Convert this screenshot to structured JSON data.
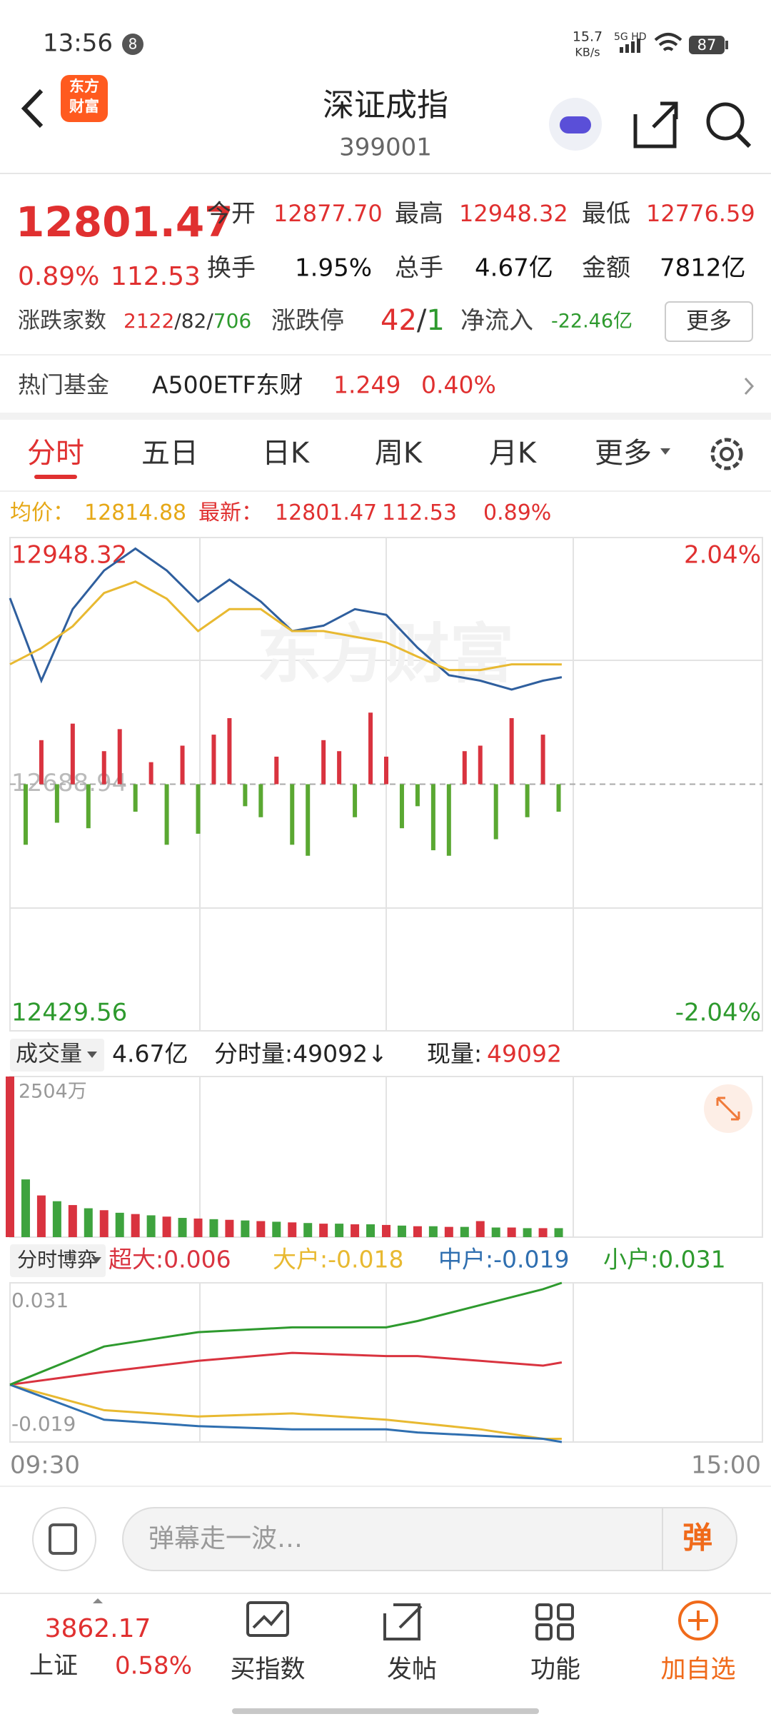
{
  "status": {
    "time": "13:56",
    "badge": "8",
    "speed": "15.7",
    "speed_unit": "KB/s",
    "network": "5G HD",
    "battery": "87"
  },
  "header": {
    "logo_line1": "东方",
    "logo_line2": "财富",
    "title": "深证成指",
    "code": "399001"
  },
  "quote": {
    "price": "12801.47",
    "change_pct": "0.89%",
    "change": "112.53",
    "stats": [
      {
        "label": "今开",
        "value": "12877.70"
      },
      {
        "label": "最高",
        "value": "12948.32"
      },
      {
        "label": "最低",
        "value": "12776.59"
      },
      {
        "label": "换手",
        "value": "1.95%"
      },
      {
        "label": "总手",
        "value": "4.67亿"
      },
      {
        "label": "金额",
        "value": "7812亿"
      }
    ],
    "breadth_label": "涨跌家数",
    "breadth": [
      "2122",
      "/82/",
      "706"
    ],
    "limit_label": "涨跌停",
    "limit": [
      "42",
      "/",
      "1"
    ],
    "inflow_label": "净流入",
    "inflow": "-22.46亿",
    "more": "更多"
  },
  "hot_fund": {
    "label": "热门基金",
    "name": "A500ETF东财",
    "price": "1.249",
    "change": "0.40%"
  },
  "tabs": [
    "分时",
    "五日",
    "日K",
    "周K",
    "月K",
    "更多"
  ],
  "info": {
    "avg_label": "均价：",
    "avg": "12814.88",
    "last_label": "最新：",
    "last": "12801.47",
    "change": "112.53",
    "change_pct": "0.89%"
  },
  "watermark": "东方财富",
  "volume_bar": {
    "selector": "成交量",
    "total": "4.67亿",
    "minute": "分时量:49092↓",
    "current_label": "现量:",
    "current": "49092"
  },
  "flow_bar": {
    "selector": "分时博弈"
  },
  "chart_data": [
    {
      "type": "line",
      "xlim": [
        "09:30",
        "15:00"
      ],
      "ylim": [
        12429.56,
        12948.32
      ],
      "yticks": [
        12948.32,
        12688.94,
        12429.56
      ],
      "y2lim": [
        -2.04,
        2.04
      ],
      "y2ticks": [
        {
          "value": 2.04,
          "label": "2.04%"
        },
        {
          "value": -2.04,
          "label": "-2.04%"
        }
      ],
      "x": [
        "09:30",
        "09:40",
        "09:50",
        "10:00",
        "10:10",
        "10:20",
        "10:30",
        "10:40",
        "10:50",
        "11:00",
        "11:10",
        "11:20",
        "11:30",
        "13:10",
        "13:20",
        "13:30",
        "13:40",
        "13:50",
        "13:56"
      ],
      "series": [
        {
          "name": "price",
          "color": "#2f5f9e",
          "values": [
            12884.6,
            12797.8,
            12873,
            12913.6,
            12936.7,
            12913.6,
            12881,
            12904,
            12881,
            12850,
            12855.7,
            12873,
            12867,
            12832.5,
            12803.6,
            12797.8,
            12788.5,
            12797.8,
            12801.47
          ]
        },
        {
          "name": "avg",
          "color": "#e8b931",
          "values": [
            12815,
            12832,
            12855,
            12890,
            12902,
            12884,
            12850,
            12873,
            12873,
            12850,
            12850,
            12844,
            12838,
            12823,
            12809,
            12809,
            12815,
            12815,
            12814.88
          ]
        }
      ],
      "bars": {
        "ylim": [
          -224,
          224
        ],
        "colors": [
          "#d9333f",
          "#5aa832"
        ],
        "x": [
          "09:35",
          "09:40",
          "09:45",
          "09:50",
          "09:55",
          "10:00",
          "10:05",
          "10:10",
          "10:15",
          "10:20",
          "10:25",
          "10:30",
          "10:35",
          "10:40",
          "10:45",
          "10:50",
          "10:55",
          "11:00",
          "11:05",
          "11:10",
          "11:15",
          "11:20",
          "11:25",
          "11:30",
          "13:05",
          "13:10",
          "13:15",
          "13:20",
          "13:25",
          "13:30",
          "13:35",
          "13:40",
          "13:45",
          "13:50",
          "13:55"
        ],
        "values": [
          -55,
          40,
          -35,
          55,
          -40,
          30,
          50,
          -25,
          20,
          -55,
          35,
          -45,
          45,
          60,
          -20,
          -30,
          25,
          -55,
          -65,
          40,
          30,
          -30,
          65,
          25,
          -40,
          -20,
          -60,
          -65,
          30,
          35,
          -50,
          60,
          -30,
          45,
          -25
        ]
      }
    },
    {
      "type": "bar",
      "ylim": [
        0,
        2504
      ],
      "yticks": [
        {
          "value": 2504,
          "label": "2504万"
        }
      ],
      "colors": [
        "#d9333f",
        "#3ea33e"
      ],
      "x": [
        "09:30",
        "09:35",
        "09:40",
        "09:45",
        "09:50",
        "09:55",
        "10:00",
        "10:05",
        "10:10",
        "10:15",
        "10:20",
        "10:25",
        "10:30",
        "10:35",
        "10:40",
        "10:45",
        "10:50",
        "10:55",
        "11:00",
        "11:05",
        "11:10",
        "11:15",
        "11:20",
        "11:25",
        "11:30",
        "13:05",
        "13:10",
        "13:15",
        "13:20",
        "13:25",
        "13:30",
        "13:35",
        "13:40",
        "13:45",
        "13:50",
        "13:55"
      ],
      "values": [
        2504,
        900,
        650,
        560,
        500,
        450,
        420,
        380,
        360,
        340,
        320,
        300,
        290,
        280,
        270,
        260,
        250,
        240,
        230,
        220,
        210,
        210,
        200,
        200,
        190,
        180,
        170,
        170,
        160,
        160,
        250,
        150,
        150,
        140,
        140,
        140
      ]
    },
    {
      "type": "line",
      "ylim": [
        -0.019,
        0.031
      ],
      "yticks": [
        0.031,
        -0.019
      ],
      "x": [
        "09:30",
        "10:00",
        "10:30",
        "11:00",
        "11:30",
        "13:10",
        "13:30",
        "13:50",
        "13:56"
      ],
      "series": [
        {
          "name": "超大",
          "legend": "超大:0.006",
          "color": "#d9333f",
          "values": [
            -0.001,
            0.003,
            0.0065,
            0.009,
            0.008,
            0.008,
            0.0065,
            0.005,
            0.006
          ]
        },
        {
          "name": "大户",
          "legend": "大户:-0.018",
          "color": "#e8b931",
          "values": [
            -0.001,
            -0.009,
            -0.011,
            -0.01,
            -0.012,
            -0.013,
            -0.015,
            -0.018,
            -0.018
          ]
        },
        {
          "name": "中户",
          "legend": "中户:-0.019",
          "color": "#2f6fb0",
          "values": [
            -0.001,
            -0.012,
            -0.014,
            -0.015,
            -0.015,
            -0.016,
            -0.017,
            -0.018,
            -0.019
          ]
        },
        {
          "name": "小户",
          "legend": "小户:0.031",
          "color": "#2e9a2e",
          "values": [
            -0.001,
            0.011,
            0.0155,
            0.017,
            0.017,
            0.019,
            0.024,
            0.029,
            0.031
          ]
        }
      ]
    }
  ],
  "comment": {
    "placeholder": "弹幕走一波…",
    "button": "弹"
  },
  "nav": {
    "index_price": "3862.17",
    "index_name": "上证",
    "index_change": "0.58%",
    "items": [
      "买指数",
      "发帖",
      "功能",
      "加自选"
    ]
  }
}
